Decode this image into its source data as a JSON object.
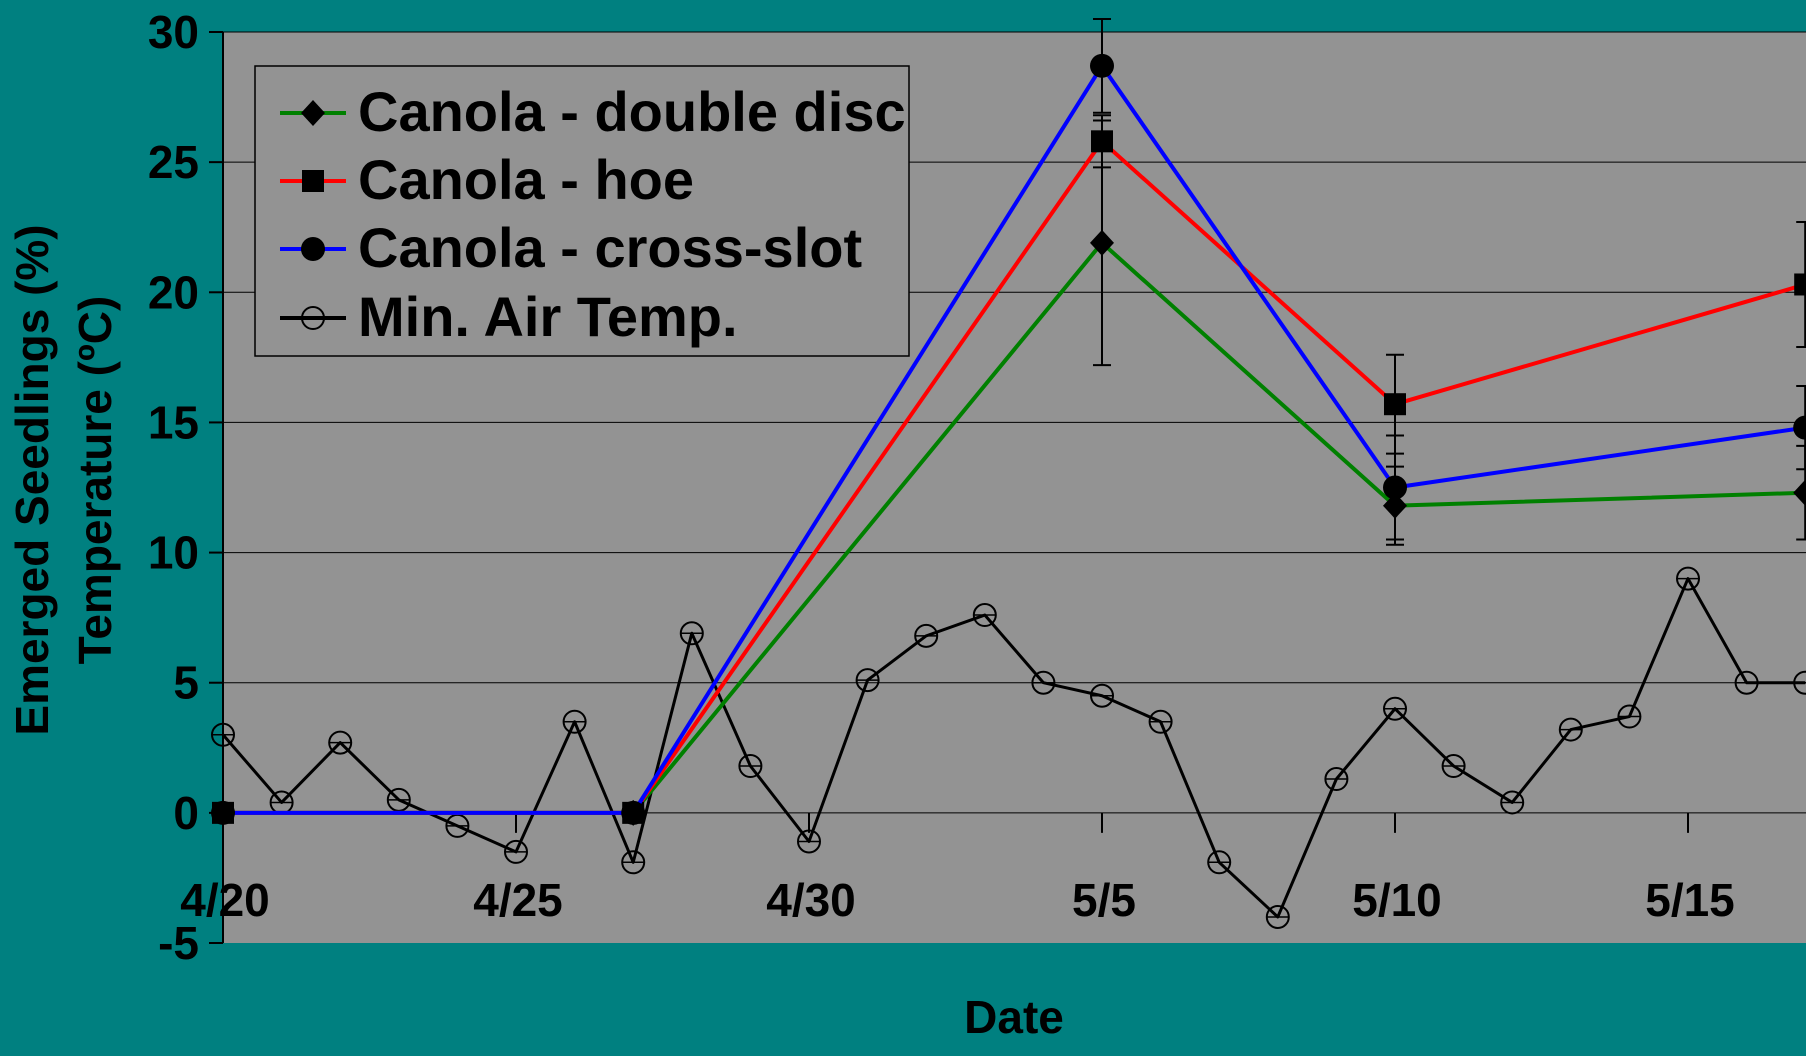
{
  "chart_data": {
    "type": "line",
    "xlabel": "Date",
    "ylabel_line1": "Emerged Seedlings (%)",
    "ylabel_line2": "Temperature (ºC)",
    "ylim": [
      -5,
      30
    ],
    "yticks": [
      -5,
      0,
      5,
      10,
      15,
      20,
      25,
      30
    ],
    "xlim": [
      "4/20",
      "5/17"
    ],
    "xticks": [
      {
        "day": 0,
        "label": "4/20"
      },
      {
        "day": 5,
        "label": "4/25"
      },
      {
        "day": 10,
        "label": "4/30"
      },
      {
        "day": 15,
        "label": "5/5"
      },
      {
        "day": 20,
        "label": "5/10"
      },
      {
        "day": 25,
        "label": "5/15"
      }
    ],
    "grid": true,
    "legend_position": "top-left",
    "series": [
      {
        "name": "Canola - double disc",
        "color": "#008000",
        "marker": "diamond",
        "points": [
          {
            "x": "4/20",
            "y": 0
          },
          {
            "x": "4/27",
            "y": 0
          },
          {
            "x": "5/5",
            "y": 21.9,
            "err": 4.7
          },
          {
            "x": "5/10",
            "y": 11.8,
            "err": 1.5
          },
          {
            "x": "5/17",
            "y": 12.3,
            "err": 1.8
          }
        ]
      },
      {
        "name": "Canola - hoe",
        "color": "#ff0000",
        "marker": "square",
        "points": [
          {
            "x": "4/20",
            "y": 0
          },
          {
            "x": "4/27",
            "y": 0
          },
          {
            "x": "5/5",
            "y": 25.8,
            "err": 1.0
          },
          {
            "x": "5/10",
            "y": 15.7,
            "err": 1.9
          },
          {
            "x": "5/17",
            "y": 20.3,
            "err": 2.4
          }
        ]
      },
      {
        "name": "Canola - cross-slot",
        "color": "#0000ff",
        "marker": "circle",
        "points": [
          {
            "x": "4/20",
            "y": 0
          },
          {
            "x": "4/27",
            "y": 0
          },
          {
            "x": "5/5",
            "y": 28.7,
            "err": 1.8
          },
          {
            "x": "5/10",
            "y": 12.5,
            "err": 2.0
          },
          {
            "x": "5/17",
            "y": 14.8,
            "err": 1.6
          }
        ]
      },
      {
        "name": "Min. Air Temp.",
        "color": "#000000",
        "marker": "open-circle",
        "points": [
          {
            "x": "4/20",
            "y": 3.0
          },
          {
            "x": "4/21",
            "y": 0.4
          },
          {
            "x": "4/22",
            "y": 2.7
          },
          {
            "x": "4/23",
            "y": 0.5
          },
          {
            "x": "4/24",
            "y": -0.5
          },
          {
            "x": "4/25",
            "y": -1.5
          },
          {
            "x": "4/26",
            "y": 3.5
          },
          {
            "x": "4/27",
            "y": -1.9
          },
          {
            "x": "4/28",
            "y": 6.9
          },
          {
            "x": "4/29",
            "y": 1.8
          },
          {
            "x": "4/30",
            "y": -1.1
          },
          {
            "x": "5/1",
            "y": 5.1
          },
          {
            "x": "5/2",
            "y": 6.8
          },
          {
            "x": "5/3",
            "y": 7.6
          },
          {
            "x": "5/4",
            "y": 5.0
          },
          {
            "x": "5/5",
            "y": 4.5
          },
          {
            "x": "5/6",
            "y": 3.5
          },
          {
            "x": "5/7",
            "y": -1.9
          },
          {
            "x": "5/8",
            "y": -4.0
          },
          {
            "x": "5/9",
            "y": 1.3
          },
          {
            "x": "5/10",
            "y": 4.0
          },
          {
            "x": "5/11",
            "y": 1.8
          },
          {
            "x": "5/12",
            "y": 0.4
          },
          {
            "x": "5/13",
            "y": 3.2
          },
          {
            "x": "5/14",
            "y": 3.7
          },
          {
            "x": "5/15",
            "y": 9.0
          },
          {
            "x": "5/16",
            "y": 5.0
          },
          {
            "x": "5/17",
            "y": 5.0
          }
        ]
      }
    ]
  }
}
